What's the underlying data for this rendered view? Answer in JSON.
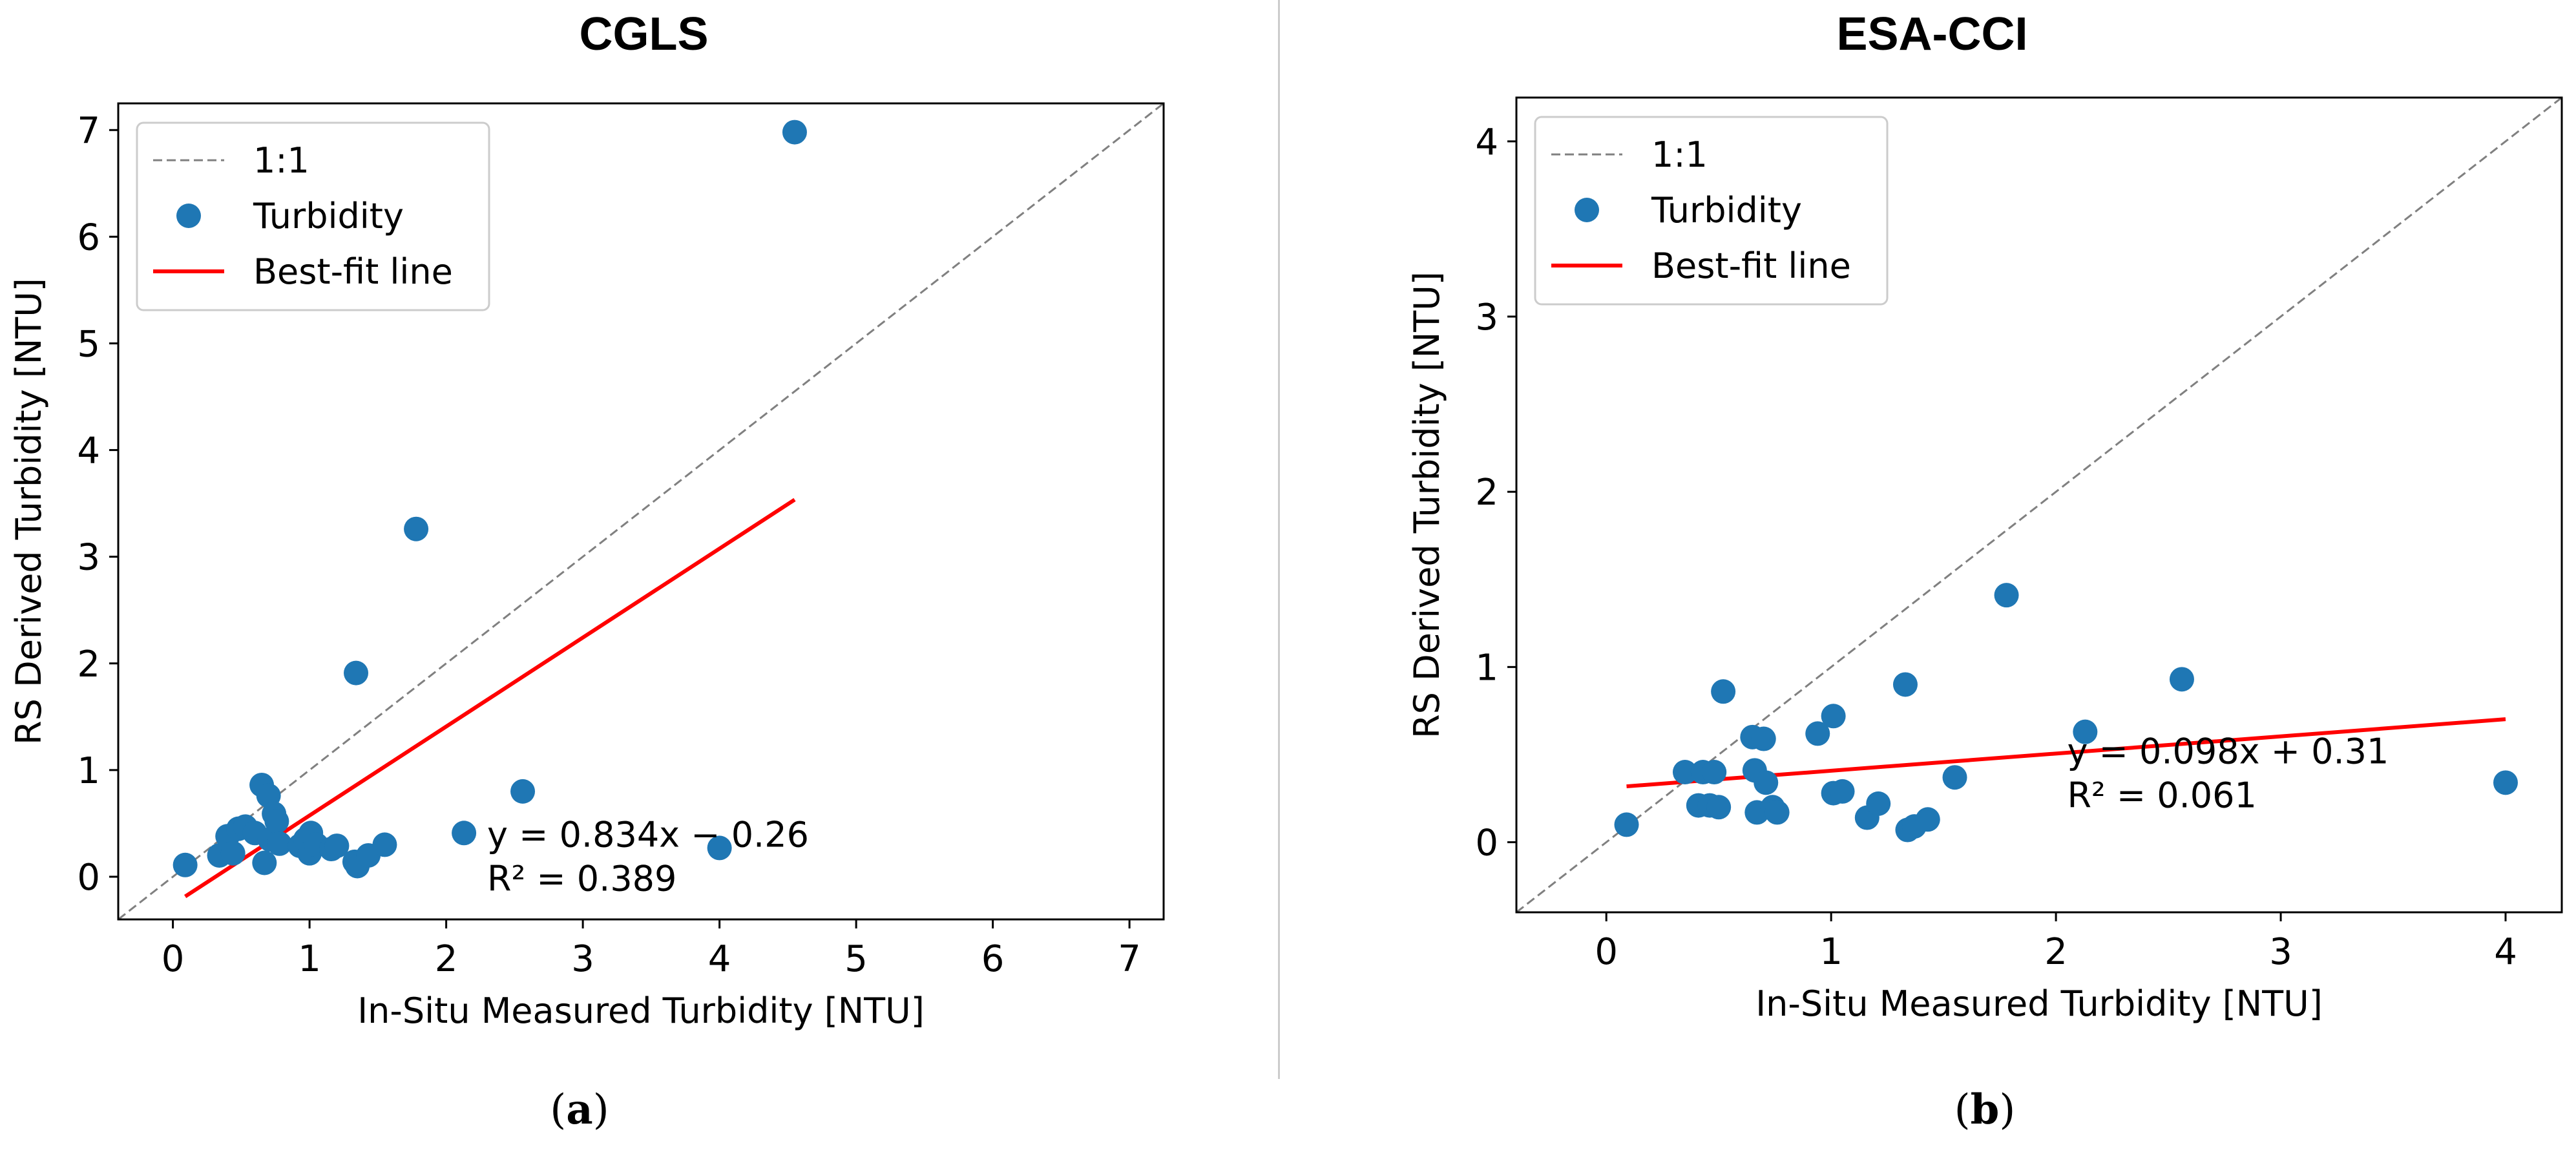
{
  "chart_data": [
    {
      "panel": "a",
      "type": "scatter",
      "title": "CGLS",
      "xlabel": "In-Situ Measured Turbidity [NTU]",
      "ylabel": "RS Derived Turbidity [NTU]",
      "xlim": [
        -0.4,
        7.25
      ],
      "ylim": [
        -0.4,
        7.25
      ],
      "xticks": [
        0,
        1,
        2,
        3,
        4,
        5,
        6,
        7
      ],
      "yticks": [
        0,
        1,
        2,
        3,
        4,
        5,
        6,
        7
      ],
      "legend": {
        "position": "top-left",
        "entries": [
          "1:1",
          "Turbidity",
          "Best-fit line"
        ]
      },
      "points": [
        {
          "x": 0.09,
          "y": 0.11
        },
        {
          "x": 0.34,
          "y": 0.2
        },
        {
          "x": 0.4,
          "y": 0.38
        },
        {
          "x": 0.44,
          "y": 0.22
        },
        {
          "x": 0.48,
          "y": 0.45
        },
        {
          "x": 0.53,
          "y": 0.47
        },
        {
          "x": 0.6,
          "y": 0.41
        },
        {
          "x": 0.65,
          "y": 0.86
        },
        {
          "x": 0.67,
          "y": 0.13
        },
        {
          "x": 0.7,
          "y": 0.76
        },
        {
          "x": 0.71,
          "y": 0.35
        },
        {
          "x": 0.74,
          "y": 0.59
        },
        {
          "x": 0.76,
          "y": 0.52
        },
        {
          "x": 0.78,
          "y": 0.31
        },
        {
          "x": 0.93,
          "y": 0.29
        },
        {
          "x": 0.97,
          "y": 0.35
        },
        {
          "x": 1.0,
          "y": 0.22
        },
        {
          "x": 1.01,
          "y": 0.41
        },
        {
          "x": 1.05,
          "y": 0.3
        },
        {
          "x": 1.16,
          "y": 0.26
        },
        {
          "x": 1.2,
          "y": 0.29
        },
        {
          "x": 1.33,
          "y": 0.14
        },
        {
          "x": 1.35,
          "y": 0.1
        },
        {
          "x": 1.43,
          "y": 0.2
        },
        {
          "x": 1.55,
          "y": 0.3
        },
        {
          "x": 1.34,
          "y": 1.91
        },
        {
          "x": 1.78,
          "y": 3.26
        },
        {
          "x": 2.13,
          "y": 0.41
        },
        {
          "x": 2.56,
          "y": 0.8
        },
        {
          "x": 4.0,
          "y": 0.27
        },
        {
          "x": 4.55,
          "y": 6.98
        }
      ],
      "fit": {
        "slope": 0.834,
        "intercept": -0.26,
        "x_range": [
          0.09,
          4.55
        ]
      },
      "annotation": [
        "y = 0.834x − 0.26",
        "R² = 0.389"
      ],
      "annotation_at": {
        "x": 2.3,
        "y": 0.28
      }
    },
    {
      "panel": "b",
      "type": "scatter",
      "title": "ESA-CCI",
      "xlabel": "In-Situ Measured Turbidity [NTU]",
      "ylabel": "RS Derived Turbidity [NTU]",
      "xlim": [
        -0.4,
        4.25
      ],
      "ylim": [
        -0.4,
        4.25
      ],
      "xticks": [
        0,
        1,
        2,
        3,
        4
      ],
      "yticks": [
        0,
        1,
        2,
        3,
        4
      ],
      "legend": {
        "position": "top-left",
        "entries": [
          "1:1",
          "Turbidity",
          "Best-fit line"
        ]
      },
      "points": [
        {
          "x": 0.09,
          "y": 0.1
        },
        {
          "x": 0.35,
          "y": 0.4
        },
        {
          "x": 0.41,
          "y": 0.21
        },
        {
          "x": 0.43,
          "y": 0.4
        },
        {
          "x": 0.46,
          "y": 0.21
        },
        {
          "x": 0.48,
          "y": 0.4
        },
        {
          "x": 0.5,
          "y": 0.2
        },
        {
          "x": 0.52,
          "y": 0.86
        },
        {
          "x": 0.65,
          "y": 0.6
        },
        {
          "x": 0.66,
          "y": 0.41
        },
        {
          "x": 0.67,
          "y": 0.17
        },
        {
          "x": 0.7,
          "y": 0.59
        },
        {
          "x": 0.71,
          "y": 0.34
        },
        {
          "x": 0.74,
          "y": 0.2
        },
        {
          "x": 0.76,
          "y": 0.17
        },
        {
          "x": 0.94,
          "y": 0.62
        },
        {
          "x": 1.01,
          "y": 0.72
        },
        {
          "x": 1.01,
          "y": 0.28
        },
        {
          "x": 1.05,
          "y": 0.29
        },
        {
          "x": 1.16,
          "y": 0.14
        },
        {
          "x": 1.21,
          "y": 0.22
        },
        {
          "x": 1.33,
          "y": 0.9
        },
        {
          "x": 1.34,
          "y": 0.07
        },
        {
          "x": 1.37,
          "y": 0.09
        },
        {
          "x": 1.43,
          "y": 0.13
        },
        {
          "x": 1.55,
          "y": 0.37
        },
        {
          "x": 1.78,
          "y": 1.41
        },
        {
          "x": 2.13,
          "y": 0.63
        },
        {
          "x": 2.56,
          "y": 0.93
        },
        {
          "x": 4.0,
          "y": 0.34
        }
      ],
      "fit": {
        "slope": 0.098,
        "intercept": 0.31,
        "x_range": [
          0.09,
          4.0
        ]
      },
      "annotation": [
        "y = 0.098x + 0.31",
        "R² = 0.061"
      ],
      "annotation_at": {
        "x": 2.05,
        "y": 0.45
      }
    }
  ],
  "captions": {
    "a": "a",
    "b": "b"
  },
  "colors": {
    "points": "#1f77b4",
    "fit_line": "#ff0000",
    "identity_line": "#808080",
    "axes": "#000000"
  }
}
